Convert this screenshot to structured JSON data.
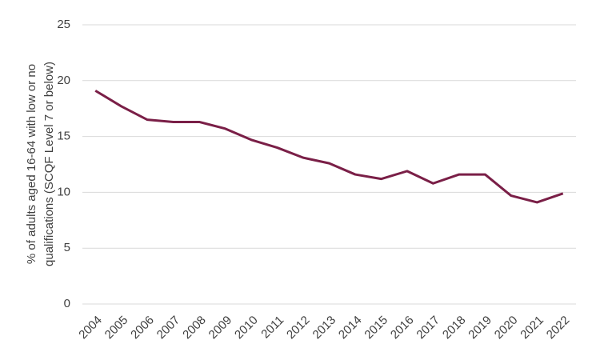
{
  "chart_data": {
    "type": "line",
    "y_label": [
      "% of adults aged 16-64 with low or no",
      "qualifications (SCQF Level 7 or below)"
    ],
    "categories": [
      "2004",
      "2005",
      "2006",
      "2007",
      "2008",
      "2009",
      "2010",
      "2011",
      "2012",
      "2013",
      "2014",
      "2015",
      "2016",
      "2017",
      "2018",
      "2019",
      "2020",
      "2021",
      "2022"
    ],
    "values": [
      19.1,
      17.7,
      16.5,
      16.3,
      16.3,
      15.7,
      14.7,
      14.0,
      13.1,
      12.6,
      11.6,
      11.2,
      11.9,
      10.8,
      11.6,
      11.6,
      9.7,
      9.1,
      9.9
    ],
    "color": "#7a1f47",
    "ylim": [
      0,
      25
    ],
    "yticks": [
      0,
      5,
      10,
      15,
      20,
      25
    ],
    "grid": true
  }
}
